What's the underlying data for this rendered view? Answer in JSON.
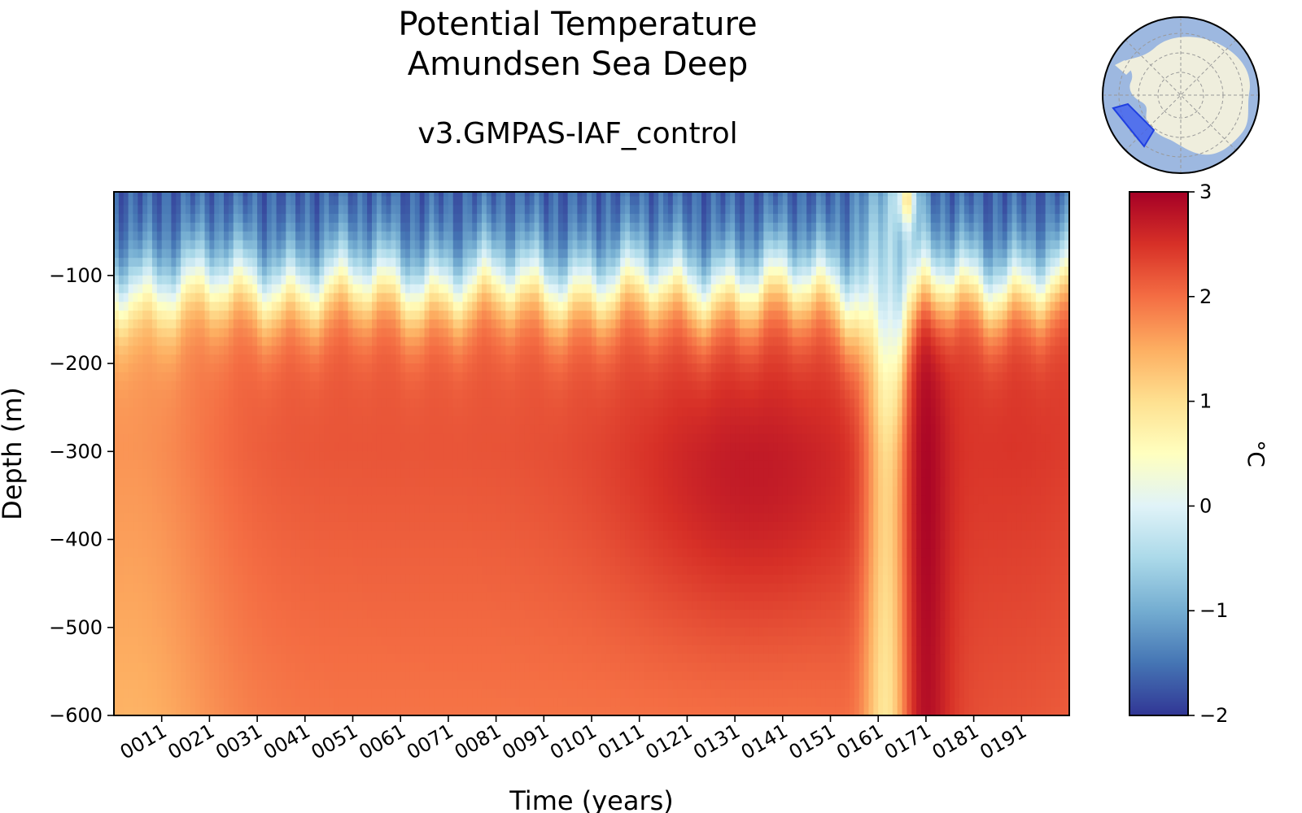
{
  "chart_data": {
    "type": "heatmap",
    "title": "Potential Temperature",
    "subtitle": "Amundsen Sea Deep",
    "run_name": "v3.GMPAS-IAF_control",
    "xlabel": "Time (years)",
    "ylabel": "Depth (m)",
    "x_range": [
      1,
      201
    ],
    "ylim": [
      -600,
      -5
    ],
    "x_ticks": [
      "0011",
      "0021",
      "0031",
      "0041",
      "0051",
      "0061",
      "0071",
      "0081",
      "0091",
      "0101",
      "0111",
      "0121",
      "0131",
      "0141",
      "0151",
      "0161",
      "0171",
      "0181",
      "0191"
    ],
    "x_tick_values": [
      11,
      21,
      31,
      41,
      51,
      61,
      71,
      81,
      91,
      101,
      111,
      121,
      131,
      141,
      151,
      161,
      171,
      181,
      191
    ],
    "y_ticks": [
      "−100",
      "−200",
      "−300",
      "−400",
      "−500",
      "−600"
    ],
    "y_tick_values": [
      -100,
      -200,
      -300,
      -400,
      -500,
      -600
    ],
    "colorbar": {
      "label": "°C",
      "colormap": "RdYlBu_r",
      "range": [
        -2,
        3
      ],
      "tick_values": [
        3,
        2,
        1,
        0,
        -1,
        -2
      ],
      "tick_labels": [
        "3",
        "2",
        "1",
        "0",
        "−1",
        "−2"
      ]
    },
    "profile_model": {
      "description_depths_m": [
        -5,
        -50,
        -90,
        -105,
        -130,
        -170,
        -250,
        -350,
        -450,
        -600
      ],
      "cold_surface_temp": -1.7,
      "typical_deep_temp": 2.2,
      "warm_core_year": 135,
      "warm_core_depth": -340,
      "warm_core_temp": 2.8,
      "cold_event_year": 163,
      "cold_event_deep_temp": 1.0,
      "post_event_year": 170,
      "post_event_deep_temp": 2.9
    },
    "grid": false,
    "legend": "none"
  },
  "colors": {
    "axes": "#000000",
    "map_ocean": "#9db8e0",
    "map_land": "#efeedd",
    "map_region": "#3b5bf0"
  },
  "inset_map": {
    "name": "antarctica-locator-map",
    "region": "Amundsen Sea"
  }
}
